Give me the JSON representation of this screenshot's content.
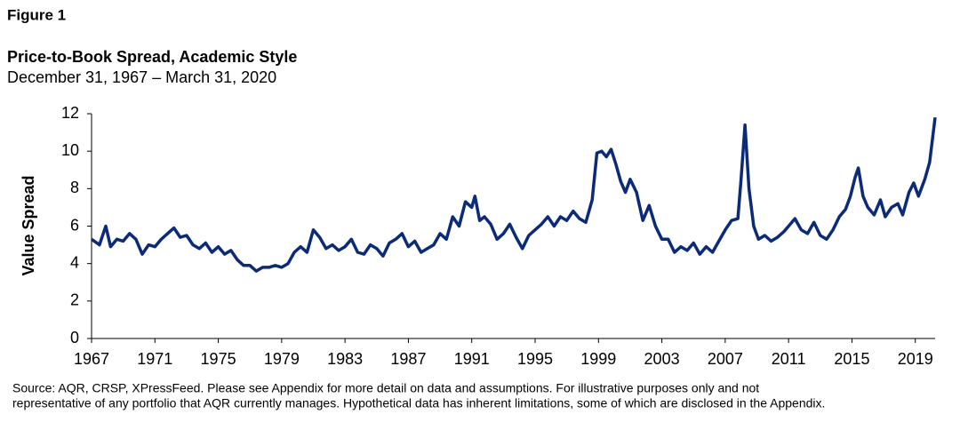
{
  "chart_data": {
    "type": "line",
    "figure_label": "Figure 1",
    "title": "Price-to-Book Spread, Academic Style",
    "subtitle": "December 31, 1967 – March 31, 2020",
    "y_label": "Value Spread",
    "source": [
      "Source: AQR, CRSP, XPressFeed. Please see Appendix for more detail on data and assumptions. For illustrative purposes only and not",
      "representative of any portfolio that AQR currently manages. Hypothetical data has inherent limitations, some of which are disclosed in the Appendix."
    ],
    "xlim": [
      1967,
      2020.25
    ],
    "xticks": [
      1967,
      1971,
      1975,
      1979,
      1983,
      1987,
      1991,
      1995,
      1999,
      2003,
      2007,
      2011,
      2015,
      2019
    ],
    "ylim": [
      0,
      12
    ],
    "yticks": [
      0,
      2,
      4,
      6,
      8,
      10,
      12
    ],
    "grid": false,
    "series": [
      {
        "name": "Value Spread",
        "color": "#0b2a78",
        "x": [
          1967.0,
          1967.5,
          1967.9,
          1968.2,
          1968.6,
          1969.0,
          1969.4,
          1969.8,
          1970.2,
          1970.6,
          1971.0,
          1971.4,
          1971.8,
          1972.2,
          1972.6,
          1973.0,
          1973.4,
          1973.8,
          1974.2,
          1974.6,
          1975.0,
          1975.4,
          1975.8,
          1976.2,
          1976.6,
          1977.0,
          1977.4,
          1977.8,
          1978.2,
          1978.6,
          1979.0,
          1979.4,
          1979.8,
          1980.2,
          1980.6,
          1981.0,
          1981.4,
          1981.8,
          1982.2,
          1982.6,
          1983.0,
          1983.4,
          1983.8,
          1984.2,
          1984.6,
          1985.0,
          1985.4,
          1985.8,
          1986.2,
          1986.6,
          1987.0,
          1987.4,
          1987.8,
          1988.2,
          1988.6,
          1989.0,
          1989.4,
          1989.8,
          1990.2,
          1990.6,
          1991.0,
          1991.2,
          1991.5,
          1991.8,
          1992.2,
          1992.6,
          1993.0,
          1993.4,
          1993.8,
          1994.2,
          1994.6,
          1995.0,
          1995.4,
          1995.8,
          1996.2,
          1996.6,
          1997.0,
          1997.4,
          1997.8,
          1998.2,
          1998.6,
          1998.9,
          1999.2,
          1999.5,
          1999.8,
          2000.1,
          2000.4,
          2000.7,
          2001.0,
          2001.4,
          2001.8,
          2002.2,
          2002.6,
          2003.0,
          2003.4,
          2003.8,
          2004.2,
          2004.6,
          2005.0,
          2005.4,
          2005.8,
          2006.2,
          2006.6,
          2007.0,
          2007.4,
          2007.8,
          2008.0,
          2008.25,
          2008.5,
          2008.8,
          2009.1,
          2009.5,
          2009.9,
          2010.3,
          2010.7,
          2011.0,
          2011.4,
          2011.8,
          2012.2,
          2012.6,
          2013.0,
          2013.4,
          2013.8,
          2014.2,
          2014.6,
          2014.9,
          2015.2,
          2015.4,
          2015.7,
          2016.0,
          2016.4,
          2016.8,
          2017.1,
          2017.5,
          2017.9,
          2018.2,
          2018.6,
          2018.9,
          2019.2,
          2019.6,
          2019.9,
          2020.25
        ],
        "values": [
          5.3,
          5.0,
          6.0,
          4.9,
          5.3,
          5.2,
          5.6,
          5.3,
          4.5,
          5.0,
          4.9,
          5.3,
          5.6,
          5.9,
          5.4,
          5.5,
          5.0,
          4.8,
          5.1,
          4.6,
          4.9,
          4.5,
          4.7,
          4.2,
          3.9,
          3.9,
          3.6,
          3.8,
          3.8,
          3.9,
          3.8,
          4.0,
          4.6,
          4.9,
          4.6,
          5.8,
          5.4,
          4.8,
          5.0,
          4.7,
          4.9,
          5.3,
          4.6,
          4.5,
          5.0,
          4.8,
          4.4,
          5.1,
          5.3,
          5.6,
          4.9,
          5.2,
          4.6,
          4.8,
          5.0,
          5.6,
          5.3,
          6.5,
          6.0,
          7.3,
          7.0,
          7.6,
          6.3,
          6.5,
          6.1,
          5.3,
          5.6,
          6.1,
          5.4,
          4.8,
          5.5,
          5.8,
          6.1,
          6.5,
          6.0,
          6.5,
          6.3,
          6.8,
          6.4,
          6.2,
          7.4,
          9.9,
          10.0,
          9.7,
          10.1,
          9.3,
          8.4,
          7.8,
          8.5,
          7.8,
          6.3,
          7.1,
          6.0,
          5.3,
          5.3,
          4.6,
          4.9,
          4.7,
          5.1,
          4.5,
          4.9,
          4.6,
          5.2,
          5.8,
          6.3,
          6.4,
          8.5,
          11.4,
          8.0,
          6.0,
          5.3,
          5.5,
          5.2,
          5.4,
          5.7,
          6.0,
          6.4,
          5.8,
          5.6,
          6.2,
          5.5,
          5.3,
          5.8,
          6.5,
          6.9,
          7.6,
          8.6,
          9.1,
          7.6,
          7.0,
          6.6,
          7.4,
          6.5,
          7.0,
          7.2,
          6.6,
          7.8,
          8.3,
          7.6,
          8.5,
          9.4,
          11.8
        ]
      }
    ]
  }
}
